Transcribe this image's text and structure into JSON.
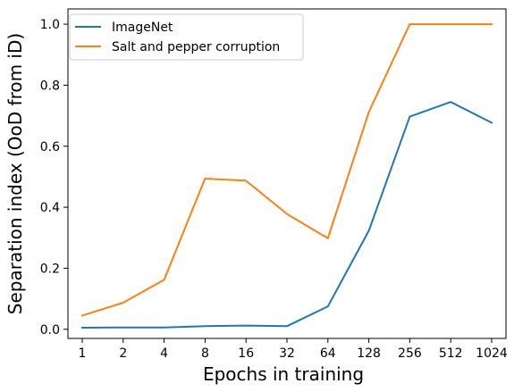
{
  "chart_data": {
    "type": "line",
    "title": "",
    "xlabel": "Epochs in training",
    "ylabel": "Separation index (OoD from iD)",
    "categories": [
      "1",
      "2",
      "4",
      "8",
      "16",
      "32",
      "64",
      "128",
      "256",
      "512",
      "1024"
    ],
    "yticks": [
      "0.0",
      "0.2",
      "0.4",
      "0.6",
      "0.8",
      "1.0"
    ],
    "ylim": [
      -0.03,
      1.05
    ],
    "grid": false,
    "legend_position": "top-left",
    "series": [
      {
        "name": "ImageNet",
        "color": "#1f77b4",
        "values": [
          0.005,
          0.006,
          0.006,
          0.01,
          0.012,
          0.01,
          0.075,
          0.323,
          0.697,
          0.745,
          0.677
        ]
      },
      {
        "name": "Salt and pepper corruption",
        "color": "#ff7f0e",
        "values": [
          0.045,
          0.087,
          0.162,
          0.494,
          0.487,
          0.378,
          0.298,
          0.712,
          1.0,
          1.0,
          1.0
        ]
      }
    ]
  }
}
